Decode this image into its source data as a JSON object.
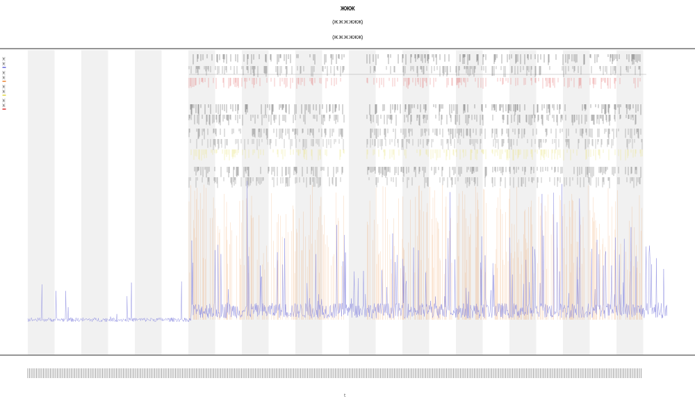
{
  "header": {
    "title": "ЖЖЖ",
    "subtitle_1": "(Ж Ж Ж ЖЖЖ)",
    "subtitle_2": "(Ж Ж Ж ЖЖЖ)"
  },
  "x_axis_title": "t",
  "theme": {
    "band_color": "#f1f1f1",
    "axis_color": "#555555",
    "series_colors": [
      "#8888e0",
      "#f0a060",
      "#c8c8c8",
      "#e8e070",
      "#e06060"
    ]
  },
  "chart_data": {
    "type": "line",
    "title": "ЖЖЖ",
    "xlabel": "t",
    "ylabel": "",
    "legend_position": "top-left",
    "grid": false,
    "x": {
      "count": 960,
      "start": 0,
      "end": 959
    },
    "shaded_band_count": 12,
    "rug_rows": 10,
    "series": [
      {
        "name": "Ж Ж",
        "color": "#8888e0",
        "description_values": "baseline ~0.05 for x in [0,275], rising to ~0.1-0.35 with spikes up to 0.85 afterwards"
      },
      {
        "name": "Ж Ж",
        "color": "#f0a060",
        "description_values": "sparse spikes 0.3-0.65 only after x≈275"
      },
      {
        "name": "Ж Ж",
        "color": "#e8e070"
      },
      {
        "name": "Ж Ж",
        "color": "#e06060"
      }
    ]
  }
}
